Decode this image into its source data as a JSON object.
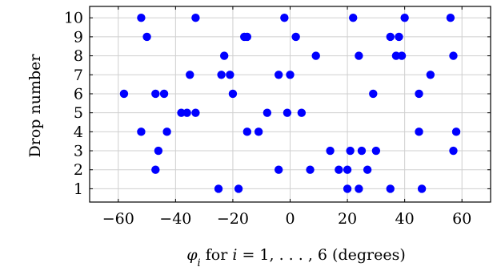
{
  "chart_data": {
    "type": "scatter",
    "xlabel_parts": [
      "φ",
      "i",
      " for ",
      "i",
      " = 1, . . . , 6 (degrees)"
    ],
    "ylabel": "Drop number",
    "xlim": [
      -70,
      70
    ],
    "ylim": [
      0.3,
      10.6
    ],
    "xticks": [
      -60,
      -40,
      -20,
      0,
      20,
      40,
      60
    ],
    "xtick_labels": [
      "−60",
      "−40",
      "−20",
      "0",
      "20",
      "40",
      "60"
    ],
    "yticks": [
      1,
      2,
      3,
      4,
      5,
      6,
      7,
      8,
      9,
      10
    ],
    "ytick_labels": [
      "1",
      "2",
      "3",
      "4",
      "5",
      "6",
      "7",
      "8",
      "9",
      "10"
    ],
    "grid": true,
    "marker_color": "#0000ff",
    "points": [
      {
        "y": 1,
        "x": [
          -25,
          -18,
          20,
          24,
          35,
          46
        ]
      },
      {
        "y": 2,
        "x": [
          -47,
          -4,
          7,
          17,
          20,
          27
        ]
      },
      {
        "y": 3,
        "x": [
          -46,
          14,
          21,
          25,
          30,
          57
        ]
      },
      {
        "y": 4,
        "x": [
          -52,
          -43,
          -15,
          -11,
          45,
          58
        ]
      },
      {
        "y": 5,
        "x": [
          -38,
          -36,
          -33,
          -8,
          -1,
          4
        ]
      },
      {
        "y": 6,
        "x": [
          -58,
          -47,
          -44,
          -20,
          29,
          45
        ]
      },
      {
        "y": 7,
        "x": [
          -35,
          -24,
          -21,
          -4,
          0,
          49
        ]
      },
      {
        "y": 8,
        "x": [
          -23,
          9,
          24,
          37,
          39,
          57
        ]
      },
      {
        "y": 9,
        "x": [
          -50,
          -16,
          -15,
          2,
          35,
          38
        ]
      },
      {
        "y": 10,
        "x": [
          -52,
          -33,
          -2,
          22,
          40,
          56
        ]
      }
    ]
  }
}
